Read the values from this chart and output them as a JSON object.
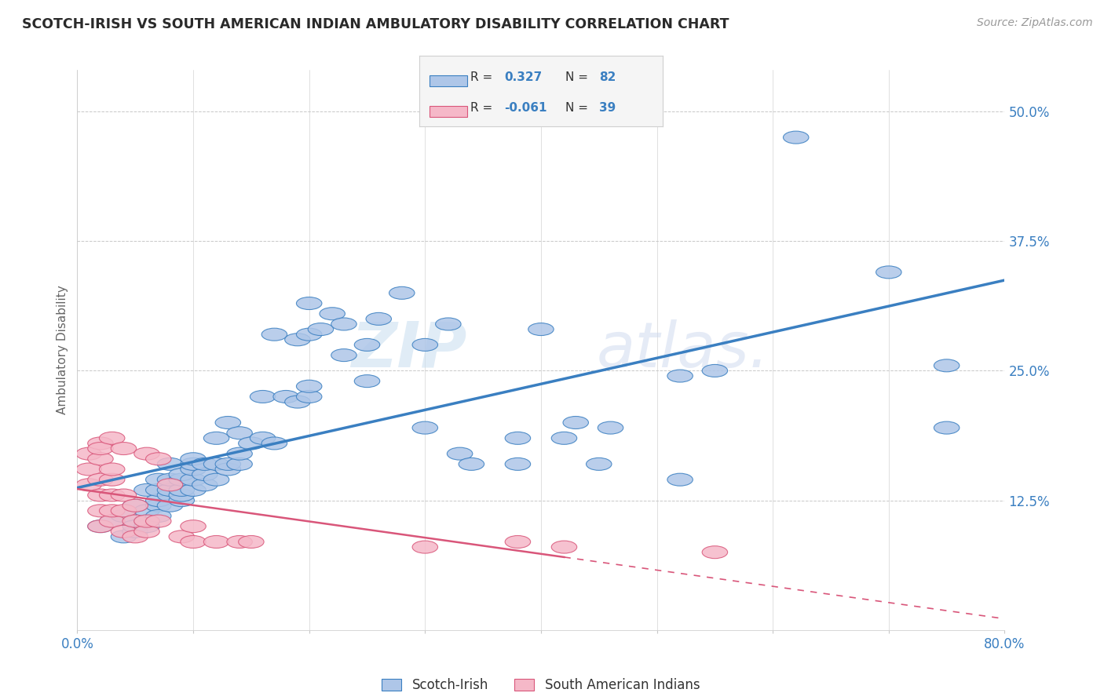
{
  "title": "SCOTCH-IRISH VS SOUTH AMERICAN INDIAN AMBULATORY DISABILITY CORRELATION CHART",
  "source": "Source: ZipAtlas.com",
  "ylabel": "Ambulatory Disability",
  "xlim": [
    0.0,
    0.8
  ],
  "ylim": [
    0.0,
    0.54
  ],
  "xticks": [
    0.0,
    0.1,
    0.2,
    0.3,
    0.4,
    0.5,
    0.6,
    0.7,
    0.8
  ],
  "xticklabels": [
    "0.0%",
    "",
    "",
    "",
    "",
    "",
    "",
    "",
    "80.0%"
  ],
  "ytick_positions": [
    0.125,
    0.25,
    0.375,
    0.5
  ],
  "ytick_labels": [
    "12.5%",
    "25.0%",
    "37.5%",
    "50.0%"
  ],
  "blue_color": "#aec6e8",
  "pink_color": "#f5b8c8",
  "blue_line_color": "#3a7fc1",
  "pink_line_color": "#d9567a",
  "grid_color": "#c8c8c8",
  "blue_scatter": [
    [
      0.02,
      0.1
    ],
    [
      0.03,
      0.105
    ],
    [
      0.04,
      0.09
    ],
    [
      0.04,
      0.11
    ],
    [
      0.05,
      0.095
    ],
    [
      0.05,
      0.12
    ],
    [
      0.05,
      0.1
    ],
    [
      0.06,
      0.105
    ],
    [
      0.06,
      0.115
    ],
    [
      0.06,
      0.135
    ],
    [
      0.06,
      0.1
    ],
    [
      0.07,
      0.12
    ],
    [
      0.07,
      0.125
    ],
    [
      0.07,
      0.135
    ],
    [
      0.07,
      0.145
    ],
    [
      0.07,
      0.11
    ],
    [
      0.08,
      0.12
    ],
    [
      0.08,
      0.13
    ],
    [
      0.08,
      0.135
    ],
    [
      0.08,
      0.145
    ],
    [
      0.08,
      0.16
    ],
    [
      0.09,
      0.125
    ],
    [
      0.09,
      0.13
    ],
    [
      0.09,
      0.135
    ],
    [
      0.09,
      0.145
    ],
    [
      0.09,
      0.15
    ],
    [
      0.1,
      0.135
    ],
    [
      0.1,
      0.145
    ],
    [
      0.1,
      0.155
    ],
    [
      0.1,
      0.16
    ],
    [
      0.1,
      0.165
    ],
    [
      0.11,
      0.14
    ],
    [
      0.11,
      0.15
    ],
    [
      0.11,
      0.16
    ],
    [
      0.12,
      0.145
    ],
    [
      0.12,
      0.16
    ],
    [
      0.12,
      0.185
    ],
    [
      0.13,
      0.155
    ],
    [
      0.13,
      0.16
    ],
    [
      0.13,
      0.2
    ],
    [
      0.14,
      0.16
    ],
    [
      0.14,
      0.17
    ],
    [
      0.14,
      0.19
    ],
    [
      0.15,
      0.18
    ],
    [
      0.16,
      0.185
    ],
    [
      0.16,
      0.225
    ],
    [
      0.17,
      0.18
    ],
    [
      0.17,
      0.285
    ],
    [
      0.18,
      0.225
    ],
    [
      0.19,
      0.22
    ],
    [
      0.19,
      0.28
    ],
    [
      0.2,
      0.225
    ],
    [
      0.2,
      0.235
    ],
    [
      0.2,
      0.285
    ],
    [
      0.2,
      0.315
    ],
    [
      0.21,
      0.29
    ],
    [
      0.22,
      0.305
    ],
    [
      0.23,
      0.265
    ],
    [
      0.23,
      0.295
    ],
    [
      0.25,
      0.24
    ],
    [
      0.25,
      0.275
    ],
    [
      0.26,
      0.3
    ],
    [
      0.28,
      0.325
    ],
    [
      0.3,
      0.195
    ],
    [
      0.3,
      0.275
    ],
    [
      0.32,
      0.295
    ],
    [
      0.33,
      0.17
    ],
    [
      0.34,
      0.16
    ],
    [
      0.38,
      0.16
    ],
    [
      0.38,
      0.185
    ],
    [
      0.4,
      0.29
    ],
    [
      0.42,
      0.185
    ],
    [
      0.43,
      0.2
    ],
    [
      0.45,
      0.16
    ],
    [
      0.46,
      0.195
    ],
    [
      0.52,
      0.245
    ],
    [
      0.52,
      0.145
    ],
    [
      0.55,
      0.25
    ],
    [
      0.62,
      0.475
    ],
    [
      0.7,
      0.345
    ],
    [
      0.75,
      0.195
    ],
    [
      0.75,
      0.255
    ]
  ],
  "pink_scatter": [
    [
      0.01,
      0.14
    ],
    [
      0.01,
      0.155
    ],
    [
      0.01,
      0.17
    ],
    [
      0.02,
      0.1
    ],
    [
      0.02,
      0.115
    ],
    [
      0.02,
      0.13
    ],
    [
      0.02,
      0.145
    ],
    [
      0.02,
      0.165
    ],
    [
      0.02,
      0.18
    ],
    [
      0.02,
      0.175
    ],
    [
      0.03,
      0.105
    ],
    [
      0.03,
      0.115
    ],
    [
      0.03,
      0.13
    ],
    [
      0.03,
      0.145
    ],
    [
      0.03,
      0.155
    ],
    [
      0.03,
      0.185
    ],
    [
      0.04,
      0.095
    ],
    [
      0.04,
      0.115
    ],
    [
      0.04,
      0.13
    ],
    [
      0.04,
      0.175
    ],
    [
      0.05,
      0.09
    ],
    [
      0.05,
      0.105
    ],
    [
      0.05,
      0.12
    ],
    [
      0.06,
      0.095
    ],
    [
      0.06,
      0.105
    ],
    [
      0.06,
      0.17
    ],
    [
      0.07,
      0.105
    ],
    [
      0.07,
      0.165
    ],
    [
      0.08,
      0.14
    ],
    [
      0.09,
      0.09
    ],
    [
      0.1,
      0.085
    ],
    [
      0.1,
      0.1
    ],
    [
      0.12,
      0.085
    ],
    [
      0.14,
      0.085
    ],
    [
      0.15,
      0.085
    ],
    [
      0.3,
      0.08
    ],
    [
      0.38,
      0.085
    ],
    [
      0.42,
      0.08
    ],
    [
      0.55,
      0.075
    ]
  ]
}
